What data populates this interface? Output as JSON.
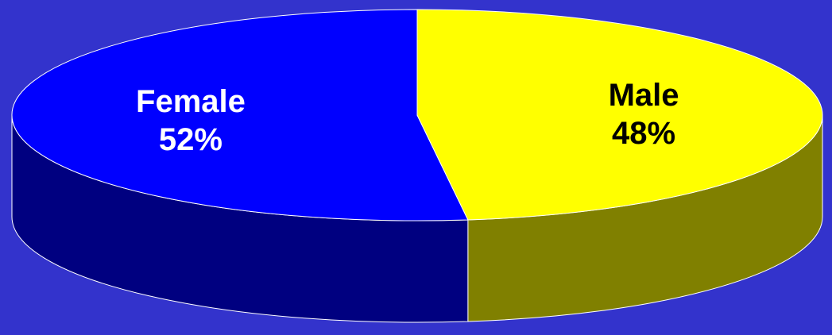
{
  "chart_data": {
    "type": "pie",
    "style": "3d",
    "title": "",
    "slices": [
      {
        "label": "Female",
        "value": 52,
        "value_label": "52%",
        "color": "#0000FF",
        "side_color": "#000080",
        "text_color": "#FFFFFF"
      },
      {
        "label": "Male",
        "value": 48,
        "value_label": "48%",
        "color": "#FFFF00",
        "side_color": "#808000",
        "text_color": "#000000"
      }
    ],
    "legend": "none",
    "background_color": "#3333CC"
  }
}
